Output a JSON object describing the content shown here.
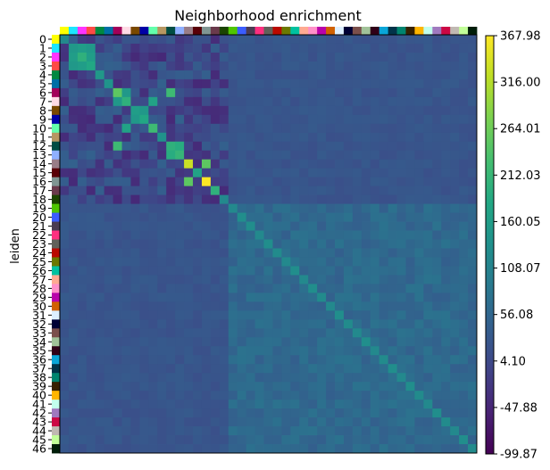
{
  "chart_data": {
    "type": "heatmap",
    "title": "Neighborhood enrichment",
    "ylabel": "leiden",
    "xlabel": "",
    "n_clusters": 47,
    "row_labels": [
      "0",
      "1",
      "2",
      "3",
      "4",
      "5",
      "6",
      "7",
      "8",
      "9",
      "10",
      "11",
      "12",
      "13",
      "14",
      "15",
      "16",
      "17",
      "18",
      "19",
      "20",
      "21",
      "22",
      "23",
      "24",
      "25",
      "26",
      "27",
      "28",
      "29",
      "30",
      "31",
      "32",
      "33",
      "34",
      "35",
      "36",
      "37",
      "38",
      "39",
      "40",
      "41",
      "42",
      "43",
      "44",
      "45",
      "46"
    ],
    "cluster_colors": [
      "#ffff00",
      "#1ce6ff",
      "#ff34ff",
      "#ff4a46",
      "#008941",
      "#006fa6",
      "#a30059",
      "#ffdbe5",
      "#7a4900",
      "#0000a6",
      "#63ffac",
      "#b79762",
      "#004d43",
      "#8fb0ff",
      "#997d87",
      "#5a0007",
      "#809693",
      "#6a3a4c",
      "#1b4400",
      "#4fc601",
      "#3b5dff",
      "#4a3b53",
      "#ff2f80",
      "#61615a",
      "#ba0900",
      "#6b7900",
      "#00c2a0",
      "#ffaa92",
      "#ff90c9",
      "#b903aa",
      "#d16100",
      "#ddefff",
      "#000035",
      "#7b4f4b",
      "#a1c299",
      "#300018",
      "#0aa6d8",
      "#013349",
      "#00846f",
      "#372101",
      "#ffb500",
      "#c2ffed",
      "#a079bf",
      "#cc0744",
      "#c0b9b2",
      "#c2ff99",
      "#001e09"
    ],
    "value_range": [
      -99.87,
      367.98
    ],
    "colorbar_ticks": [
      "367.98",
      "316.00",
      "264.01",
      "212.03",
      "160.05",
      "108.07",
      "56.08",
      "4.10",
      "-47.88",
      "-99.87"
    ],
    "colormap": "viridis",
    "block_size": 19,
    "diagonal_values": [
      120,
      150,
      200,
      180,
      150,
      140,
      250,
      200,
      160,
      180,
      220,
      140,
      200,
      210,
      330,
      170,
      367.98,
      200,
      120,
      120,
      130,
      130,
      120,
      130,
      125,
      120,
      130,
      120,
      130,
      125,
      120,
      130,
      125,
      120,
      130,
      120,
      125,
      130,
      120,
      130,
      125,
      120,
      130,
      125,
      120,
      130,
      125
    ],
    "upper_block_mean": 10,
    "lower_block_mean": 60,
    "cross_block_mean": 25,
    "strong_pairs": [
      {
        "row": 1,
        "col": 2,
        "value": 160
      },
      {
        "row": 2,
        "col": 3,
        "value": 160
      },
      {
        "row": 6,
        "col": 12,
        "value": 220
      },
      {
        "row": 6,
        "col": 7,
        "value": 150
      },
      {
        "row": 10,
        "col": 7,
        "value": 170
      },
      {
        "row": 12,
        "col": 13,
        "value": 190
      },
      {
        "row": 9,
        "col": 8,
        "value": 150
      },
      {
        "row": 14,
        "col": 16,
        "value": 250
      },
      {
        "row": 3,
        "col": 1,
        "value": 150
      }
    ]
  }
}
